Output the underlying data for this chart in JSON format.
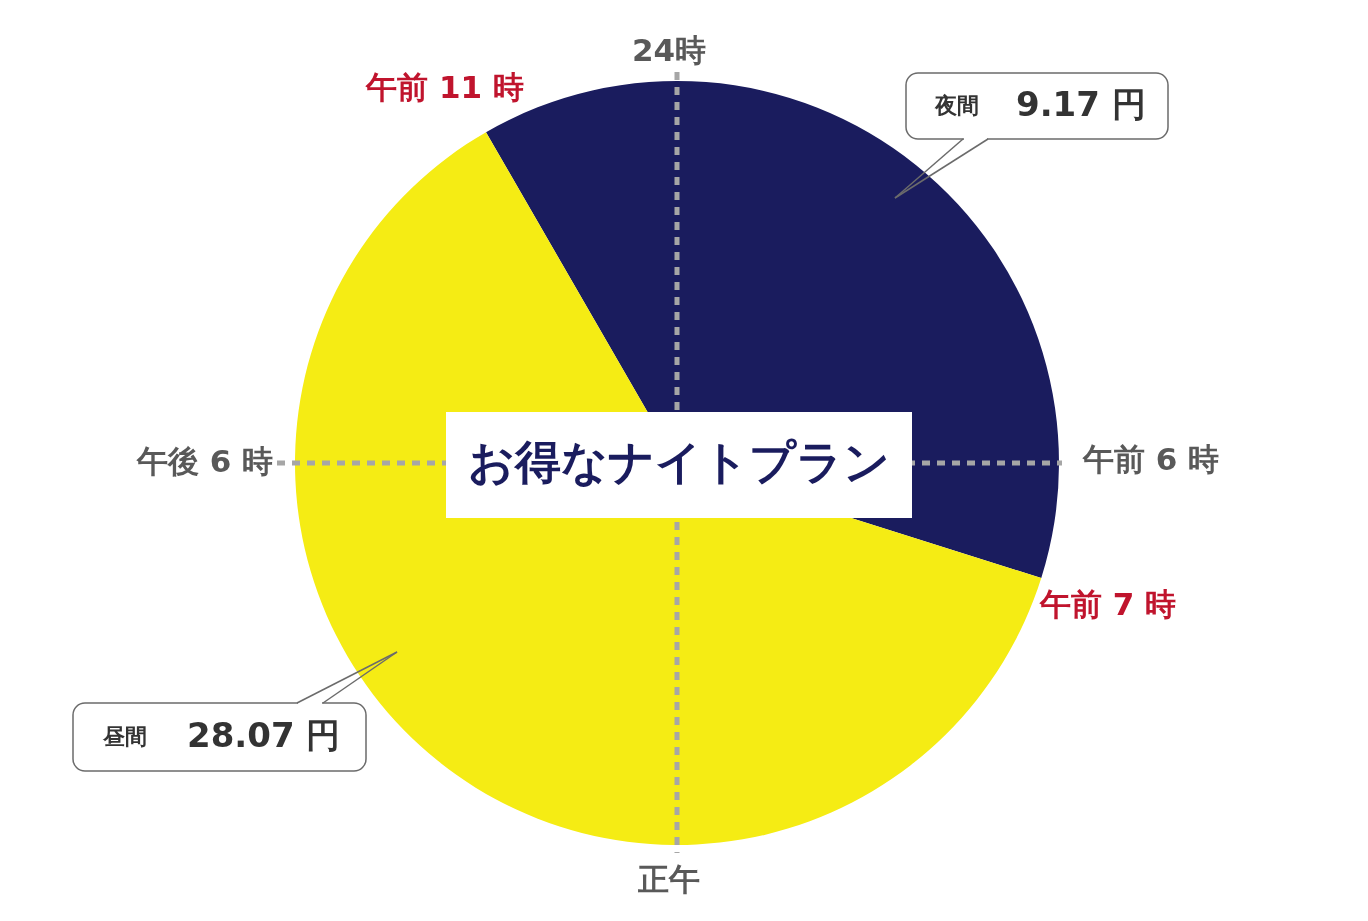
{
  "chart_data": {
    "type": "pie",
    "title": "お得なナイトプラン",
    "categories": [
      "夜間",
      "昼間"
    ],
    "values": [
      38.2,
      61.8
    ],
    "colors": [
      "#1a1c5e",
      "#f5ec14"
    ],
    "annotations": [
      "24時",
      "午前 6 時",
      "正午",
      "午後 6 時",
      "午前 11 時",
      "午前 7 時",
      "9.17 円",
      "28.07 円"
    ]
  }
}
